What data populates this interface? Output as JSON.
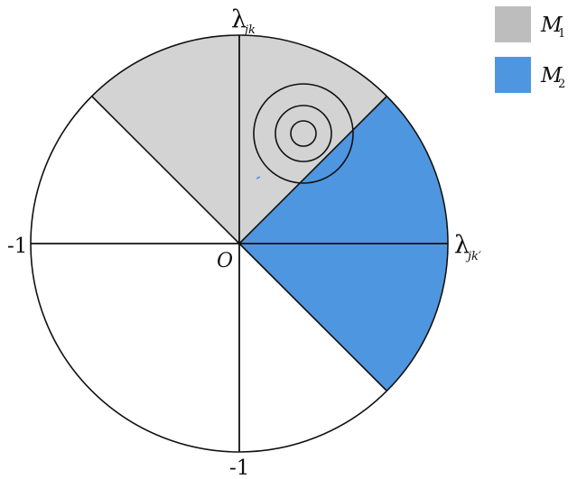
{
  "diagram": {
    "axis_labels": {
      "top": "λ",
      "top_sub": "jk",
      "right": "λ",
      "right_sub": "jk′",
      "left": "-1",
      "bottom": "-1",
      "origin": "O"
    },
    "legend": [
      {
        "label": "M",
        "sub": "1",
        "color": "#bdbdbd"
      },
      {
        "label": "M",
        "sub": "2",
        "color": "#4f96e0"
      }
    ],
    "regions": {
      "m1_fill": "#d3d3d3",
      "m2_fill": "#4f96e0",
      "m1_sector_degrees": [
        45,
        135
      ],
      "m2_sector_degrees": [
        -45,
        45
      ]
    }
  }
}
